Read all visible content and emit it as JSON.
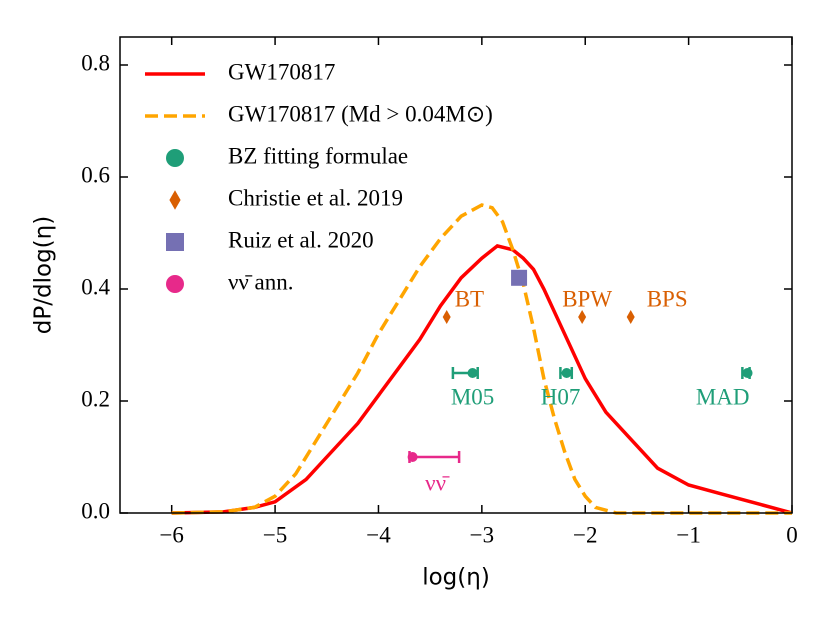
{
  "chart_data": {
    "type": "line",
    "xlabel": "log(η)",
    "ylabel": "dP/dlog(η)",
    "xlim": [
      -6.5,
      0
    ],
    "ylim": [
      0,
      0.85
    ],
    "xticks": [
      {
        "value": -6,
        "label": "−6"
      },
      {
        "value": -5,
        "label": "−5"
      },
      {
        "value": -4,
        "label": "−4"
      },
      {
        "value": -3,
        "label": "−3"
      },
      {
        "value": -2,
        "label": "−2"
      },
      {
        "value": -1,
        "label": "−1"
      },
      0
    ],
    "yticks": [
      {
        "value": 0,
        "label": "0.0"
      },
      0.2,
      0.4,
      0.6,
      0.8
    ],
    "legend": "upper left",
    "series": [
      {
        "name": "GW170817",
        "color": "#ff0000",
        "style": "solid",
        "x": [
          -6,
          -5.5,
          -5.2,
          -5,
          -4.7,
          -4.5,
          -4.2,
          -4,
          -3.8,
          -3.6,
          -3.4,
          -3.2,
          -3,
          -2.85,
          -2.7,
          -2.6,
          -2.5,
          -2.4,
          -2.2,
          -2,
          -1.8,
          -1.5,
          -1.3,
          -1,
          -0.7,
          -0.3,
          0
        ],
        "values": [
          0,
          0.002,
          0.01,
          0.02,
          0.06,
          0.1,
          0.16,
          0.21,
          0.26,
          0.31,
          0.37,
          0.42,
          0.455,
          0.477,
          0.47,
          0.455,
          0.435,
          0.4,
          0.32,
          0.24,
          0.18,
          0.12,
          0.08,
          0.05,
          0.035,
          0.015,
          0
        ]
      },
      {
        "name": "GW170817 (Md > 0.04M⊙)",
        "color": "#ffa500",
        "style": "dashed",
        "x": [
          -6,
          -5.5,
          -5.2,
          -5,
          -4.8,
          -4.6,
          -4.4,
          -4.2,
          -4,
          -3.8,
          -3.6,
          -3.4,
          -3.2,
          -3,
          -2.9,
          -2.8,
          -2.7,
          -2.6,
          -2.5,
          -2.4,
          -2.3,
          -2.2,
          -2.1,
          -2,
          -1.9,
          -1.7,
          0
        ],
        "values": [
          0,
          0.002,
          0.01,
          0.03,
          0.07,
          0.13,
          0.19,
          0.25,
          0.32,
          0.38,
          0.44,
          0.49,
          0.53,
          0.55,
          0.545,
          0.52,
          0.47,
          0.41,
          0.33,
          0.24,
          0.17,
          0.11,
          0.06,
          0.03,
          0.01,
          0,
          0
        ]
      }
    ],
    "points": [
      {
        "name": "BZ fitting formulae",
        "color": "#1f9e78",
        "marker": "circle",
        "x": [
          -3.09,
          -2.18,
          -0.43
        ],
        "values": [
          0.25,
          0.25,
          0.25
        ],
        "xerr_minus": [
          0.19,
          0.06,
          0.05
        ],
        "xerr_plus": [
          0.05,
          0.05,
          0.02
        ],
        "labels": [
          "M05",
          "H07",
          "MAD"
        ]
      },
      {
        "name": "Christie et al. 2019",
        "color": "#d95f02",
        "marker": "diamond",
        "x": [
          -3.34,
          -2.03,
          -1.56
        ],
        "values": [
          0.35,
          0.35,
          0.35
        ],
        "labels": [
          "BT",
          "BPW",
          "BPS"
        ]
      },
      {
        "name": "Ruiz et al. 2020",
        "color": "#7570b3",
        "marker": "square",
        "x": [
          -2.64
        ],
        "values": [
          0.42
        ]
      },
      {
        "name": "νν̄ ann.",
        "color": "#e7298a",
        "marker": "circle",
        "x": [
          -3.67
        ],
        "values": [
          0.1
        ],
        "xerr_minus": [
          0.03
        ],
        "xerr_plus": [
          0.45
        ],
        "labels": [
          "νν̄"
        ]
      }
    ]
  }
}
